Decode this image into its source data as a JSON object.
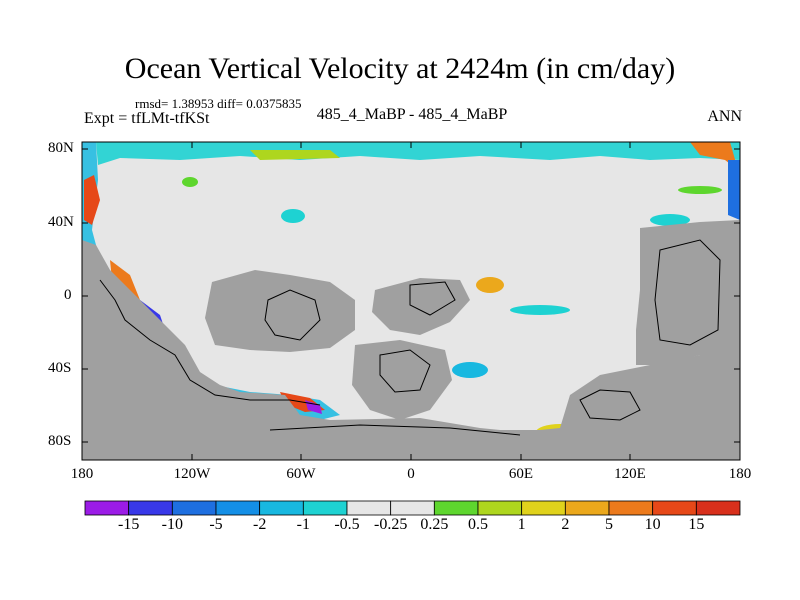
{
  "title": "Ocean Vertical Velocity at 2424m (in cm/day)",
  "stats": "rmsd= 1.38953  diff= 0.0375835",
  "experiment": "Expt = tfLMt-tfKSt",
  "cases": "485_4_MaBP - 485_4_MaBP",
  "season": "ANN",
  "map": {
    "projection": "cylindrical equidistant",
    "lon_range": [
      -180,
      180
    ],
    "lat_range": [
      -90,
      90
    ],
    "y_ticks": [
      "80N",
      "40N",
      "0",
      "40S",
      "80S"
    ],
    "x_ticks": [
      "180",
      "120W",
      "60W",
      "0",
      "60E",
      "120E",
      "180"
    ],
    "land_color": "#a0a0a0",
    "ocean_near_zero_color": "#e6e6e6"
  },
  "colorbar": {
    "labels": [
      "-15",
      "-10",
      "-5",
      "-2",
      "-1",
      "-0.5",
      "-0.25",
      "0.25",
      "0.5",
      "1",
      "2",
      "5",
      "10",
      "15"
    ],
    "colors": [
      "#9b1ce6",
      "#3838e8",
      "#1e6fe0",
      "#148fe6",
      "#18b8e0",
      "#1ed2d2",
      "#e6e6e6",
      "#e6e6e6",
      "#5ed62e",
      "#aed61e",
      "#e0d21c",
      "#eba81c",
      "#ec7a1c",
      "#e64818",
      "#d8301c"
    ]
  }
}
